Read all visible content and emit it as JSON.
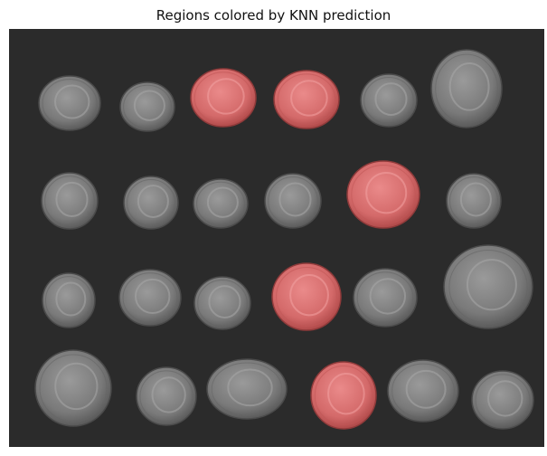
{
  "title": "Regions colored by KNN prediction",
  "colors": {
    "background": "#2b2b2b",
    "coin_gray": "#7b7b7b",
    "coin_highlight": "#d86a6a"
  },
  "coins": [
    {
      "row": 1,
      "col": 1,
      "predicted": "gray"
    },
    {
      "row": 1,
      "col": 2,
      "predicted": "gray"
    },
    {
      "row": 1,
      "col": 3,
      "predicted": "red"
    },
    {
      "row": 1,
      "col": 4,
      "predicted": "red"
    },
    {
      "row": 1,
      "col": 5,
      "predicted": "gray"
    },
    {
      "row": 1,
      "col": 6,
      "predicted": "gray"
    },
    {
      "row": 2,
      "col": 1,
      "predicted": "gray"
    },
    {
      "row": 2,
      "col": 2,
      "predicted": "gray"
    },
    {
      "row": 2,
      "col": 3,
      "predicted": "gray"
    },
    {
      "row": 2,
      "col": 4,
      "predicted": "gray"
    },
    {
      "row": 2,
      "col": 5,
      "predicted": "red"
    },
    {
      "row": 2,
      "col": 6,
      "predicted": "gray"
    },
    {
      "row": 3,
      "col": 1,
      "predicted": "gray"
    },
    {
      "row": 3,
      "col": 2,
      "predicted": "gray"
    },
    {
      "row": 3,
      "col": 3,
      "predicted": "gray"
    },
    {
      "row": 3,
      "col": 4,
      "predicted": "red"
    },
    {
      "row": 3,
      "col": 5,
      "predicted": "gray"
    },
    {
      "row": 3,
      "col": 6,
      "predicted": "gray"
    },
    {
      "row": 4,
      "col": 1,
      "predicted": "gray"
    },
    {
      "row": 4,
      "col": 2,
      "predicted": "gray"
    },
    {
      "row": 4,
      "col": 3,
      "predicted": "gray"
    },
    {
      "row": 4,
      "col": 4,
      "predicted": "red"
    },
    {
      "row": 4,
      "col": 5,
      "predicted": "gray"
    },
    {
      "row": 4,
      "col": 6,
      "predicted": "gray"
    }
  ]
}
